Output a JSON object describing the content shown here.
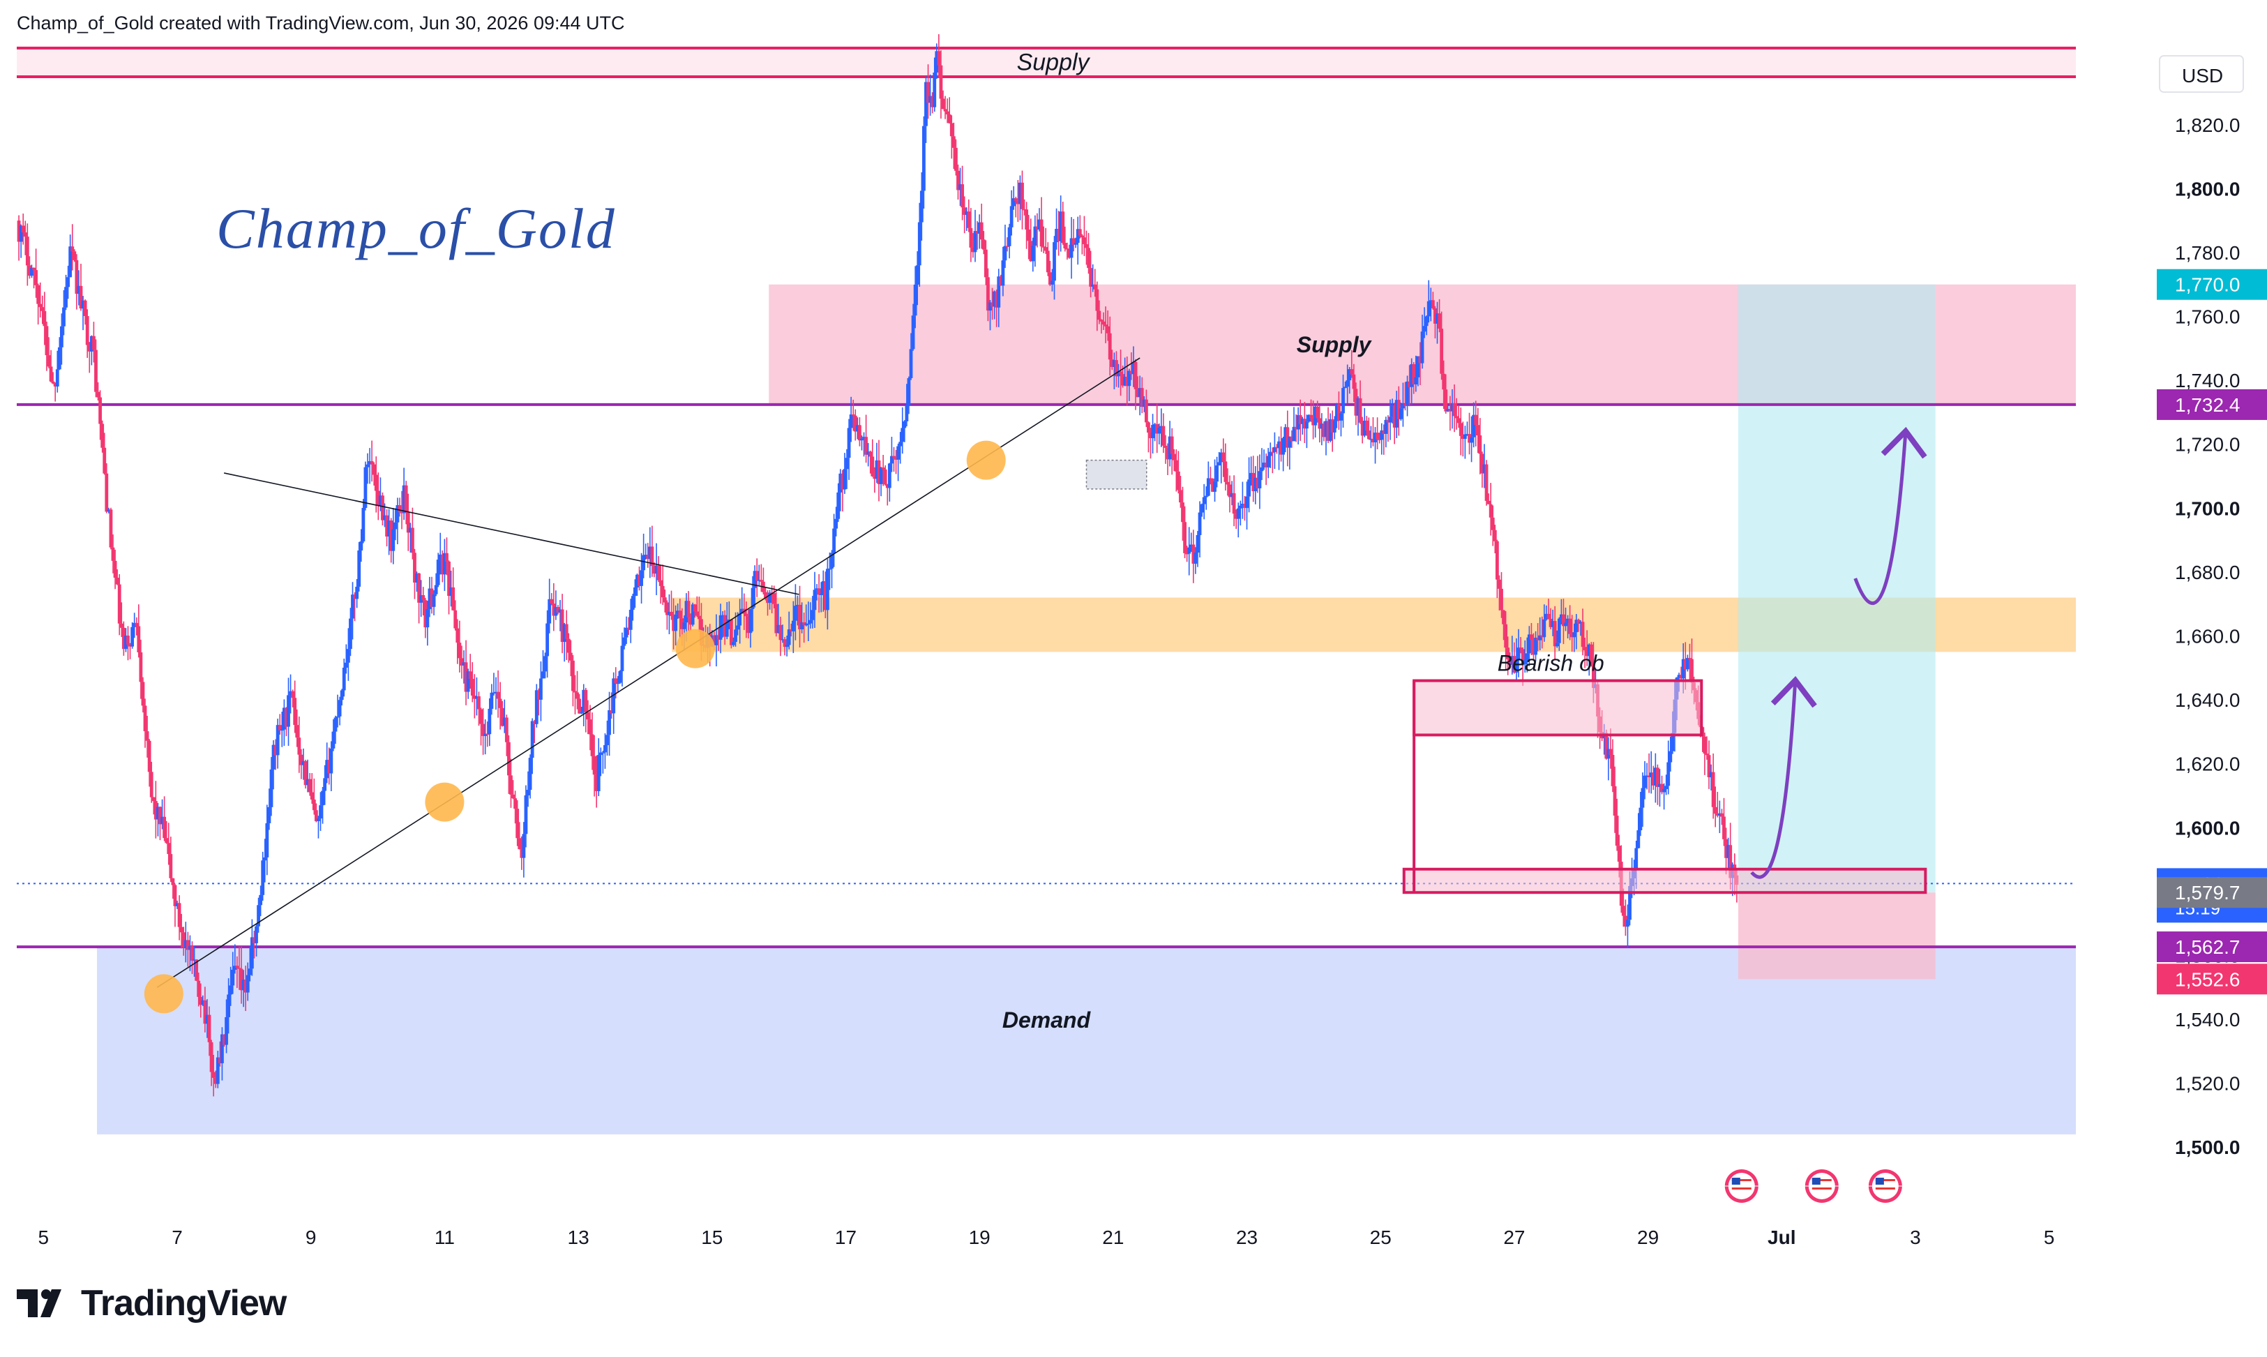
{
  "header": {
    "attribution": "Champ_of_Gold created with TradingView.com, Jun 30, 2026 09:44 UTC"
  },
  "footer": {
    "brand": "TradingView"
  },
  "watermark": "Champ_of_Gold",
  "currency_label": "USD",
  "colors": {
    "candle_up": "#2962ff",
    "candle_down": "#f23670",
    "supply_zone": "#f8bbd0",
    "demand_zone": "#c7d3fb",
    "orange_zone": "#ffcc80",
    "level_line": "#9c27b0",
    "target_fill": "#b2ebf2",
    "stop_fill": "#f8bbd0"
  },
  "chart_data": {
    "type": "candlestick",
    "instrument_currency": "USD",
    "y_range": [
      1490,
      1842
    ],
    "y_ticks": [
      1500,
      1520,
      1540,
      1560,
      1580,
      1600,
      1620,
      1640,
      1660,
      1680,
      1700,
      1720,
      1740,
      1760,
      1780,
      1800,
      1820
    ],
    "y_tick_labels": [
      "1,500.0",
      "1,520.0",
      "1,540.0",
      "1,560.0",
      "1,580.0",
      "1,600.0",
      "1,620.0",
      "1,640.0",
      "1,660.0",
      "1,680.0",
      "1,700.0",
      "1,720.0",
      "1,740.0",
      "1,760.0",
      "1,780.0",
      "1,800.0",
      "1,820.0"
    ],
    "y_ticks_bold": [
      1500,
      1600,
      1700,
      1800
    ],
    "x_range_days": [
      4.6,
      35.4
    ],
    "x_ticks": [
      {
        "day": 5,
        "label": "5"
      },
      {
        "day": 7,
        "label": "7"
      },
      {
        "day": 9,
        "label": "9"
      },
      {
        "day": 11,
        "label": "11"
      },
      {
        "day": 13,
        "label": "13"
      },
      {
        "day": 15,
        "label": "15"
      },
      {
        "day": 17,
        "label": "17"
      },
      {
        "day": 19,
        "label": "19"
      },
      {
        "day": 21,
        "label": "21"
      },
      {
        "day": 23,
        "label": "23"
      },
      {
        "day": 25,
        "label": "25"
      },
      {
        "day": 27,
        "label": "27"
      },
      {
        "day": 29,
        "label": "29"
      },
      {
        "day": 31,
        "label": "Jul"
      },
      {
        "day": 33,
        "label": "3"
      },
      {
        "day": 35,
        "label": "5"
      }
    ],
    "price_labels": [
      {
        "value": 1770.0,
        "text": "1,770.0",
        "color": "#00bcd4"
      },
      {
        "value": 1732.4,
        "text": "1,732.4",
        "color": "#9c27b0"
      },
      {
        "value": 1582.5,
        "text": "1,582.5",
        "sub": "15:19",
        "color": "#2962ff"
      },
      {
        "value": 1579.7,
        "text": "1,579.7",
        "color": "#787b86"
      },
      {
        "value": 1562.7,
        "text": "1,562.7",
        "color": "#9c27b0"
      },
      {
        "value": 1552.6,
        "text": "1,552.6",
        "color": "#f23670"
      }
    ],
    "horizontal_lines": [
      {
        "value": 1732.4,
        "color": "#9c27b0"
      },
      {
        "value": 1562.7,
        "color": "#9c27b0"
      }
    ],
    "current_price": 1582.5,
    "zones": [
      {
        "name": "top-supply",
        "label": "Supply",
        "x0": 4.6,
        "x1": 35.4,
        "y0": 1835,
        "y1": 1849,
        "fill": "#fde4ec",
        "stroke": "#e91e63",
        "label_style": "italic"
      },
      {
        "name": "supply",
        "label": "Supply",
        "x0": 15.85,
        "x1": 35.4,
        "y0": 1732.4,
        "y1": 1770,
        "fill": "#f8bbd0",
        "label_style": "bold-italic"
      },
      {
        "name": "orange",
        "label": "",
        "x0": 14.4,
        "x1": 35.4,
        "y0": 1655,
        "y1": 1672,
        "fill": "#ffcc80"
      },
      {
        "name": "demand",
        "label": "Demand",
        "x0": 5.8,
        "x1": 35.4,
        "y0": 1504,
        "y1": 1562.7,
        "fill": "#c7d3fb",
        "label_style": "bold-italic"
      }
    ],
    "order_blocks": [
      {
        "name": "bearish-ob",
        "label": "Bearish ob",
        "x0": 25.5,
        "x1": 29.8,
        "y0": 1629,
        "y1": 1646
      },
      {
        "name": "range-box",
        "label": "",
        "x0": 25.35,
        "x1": 33.15,
        "y0": 1579.7,
        "y1": 1587
      }
    ],
    "bracket_line": {
      "x": 25.5,
      "y0": 1579.7,
      "y1": 1646
    },
    "position_tool": {
      "x0": 30.35,
      "x1": 33.3,
      "entry": 1579.7,
      "target": 1770.0,
      "stop": 1552.6
    },
    "trendlines": [
      {
        "name": "upper-trendline",
        "x0": 7.7,
        "y0": 1711,
        "x1": 16.3,
        "y1": 1673
      },
      {
        "name": "rising-trendline",
        "x0": 6.7,
        "y0": 1550,
        "x1": 21.4,
        "y1": 1747
      }
    ],
    "touch_points": [
      {
        "x": 6.8,
        "y": 1548
      },
      {
        "x": 11.0,
        "y": 1608
      },
      {
        "x": 14.75,
        "y": 1656
      },
      {
        "x": 19.1,
        "y": 1715
      }
    ],
    "gray_rect": {
      "x0": 20.6,
      "x1": 21.5,
      "y0": 1706,
      "y1": 1715
    },
    "arrows": [
      {
        "name": "arrow-up-1",
        "points": [
          [
            30.55,
            1586
          ],
          [
            31.0,
            1575
          ],
          [
            31.2,
            1645
          ]
        ]
      },
      {
        "name": "arrow-up-2",
        "points": [
          [
            32.1,
            1678
          ],
          [
            32.6,
            1650
          ],
          [
            32.85,
            1723
          ]
        ]
      }
    ],
    "event_flags": [
      30.4,
      31.6,
      32.55
    ],
    "price_path": [
      [
        4.6,
        1790
      ],
      [
        4.9,
        1770
      ],
      [
        5.15,
        1737
      ],
      [
        5.4,
        1780
      ],
      [
        5.6,
        1760
      ],
      [
        5.75,
        1748
      ],
      [
        6.0,
        1690
      ],
      [
        6.2,
        1655
      ],
      [
        6.4,
        1665
      ],
      [
        6.6,
        1610
      ],
      [
        6.8,
        1598
      ],
      [
        7.0,
        1573
      ],
      [
        7.2,
        1558
      ],
      [
        7.4,
        1545
      ],
      [
        7.55,
        1520
      ],
      [
        7.7,
        1534
      ],
      [
        7.85,
        1555
      ],
      [
        8.0,
        1548
      ],
      [
        8.2,
        1570
      ],
      [
        8.45,
        1625
      ],
      [
        8.7,
        1640
      ],
      [
        8.9,
        1618
      ],
      [
        9.1,
        1598
      ],
      [
        9.3,
        1625
      ],
      [
        9.5,
        1650
      ],
      [
        9.7,
        1680
      ],
      [
        9.85,
        1718
      ],
      [
        10.0,
        1705
      ],
      [
        10.2,
        1690
      ],
      [
        10.4,
        1705
      ],
      [
        10.55,
        1680
      ],
      [
        10.7,
        1665
      ],
      [
        10.9,
        1680
      ],
      [
        11.0,
        1685
      ],
      [
        11.1,
        1672
      ],
      [
        11.25,
        1650
      ],
      [
        11.45,
        1640
      ],
      [
        11.6,
        1625
      ],
      [
        11.75,
        1645
      ],
      [
        11.9,
        1632
      ],
      [
        12.0,
        1610
      ],
      [
        12.15,
        1590
      ],
      [
        12.3,
        1628
      ],
      [
        12.45,
        1650
      ],
      [
        12.6,
        1672
      ],
      [
        12.8,
        1660
      ],
      [
        12.95,
        1640
      ],
      [
        13.1,
        1640
      ],
      [
        13.25,
        1612
      ],
      [
        13.35,
        1624
      ],
      [
        13.5,
        1640
      ],
      [
        13.7,
        1660
      ],
      [
        13.85,
        1672
      ],
      [
        14.0,
        1688
      ],
      [
        14.15,
        1680
      ],
      [
        14.3,
        1670
      ],
      [
        14.45,
        1664
      ],
      [
        14.65,
        1668
      ],
      [
        14.85,
        1660
      ],
      [
        15.0,
        1658
      ],
      [
        15.15,
        1665
      ],
      [
        15.3,
        1660
      ],
      [
        15.45,
        1670
      ],
      [
        15.55,
        1660
      ],
      [
        15.65,
        1682
      ],
      [
        15.8,
        1675
      ],
      [
        15.9,
        1670
      ],
      [
        16.05,
        1658
      ],
      [
        16.25,
        1668
      ],
      [
        16.4,
        1663
      ],
      [
        16.55,
        1675
      ],
      [
        16.7,
        1672
      ],
      [
        16.8,
        1690
      ],
      [
        16.9,
        1705
      ],
      [
        17.0,
        1715
      ],
      [
        17.1,
        1728
      ],
      [
        17.2,
        1725
      ],
      [
        17.3,
        1718
      ],
      [
        17.45,
        1712
      ],
      [
        17.6,
        1708
      ],
      [
        17.75,
        1715
      ],
      [
        17.9,
        1730
      ],
      [
        18.0,
        1760
      ],
      [
        18.1,
        1785
      ],
      [
        18.2,
        1830
      ],
      [
        18.3,
        1825
      ],
      [
        18.35,
        1840
      ],
      [
        18.45,
        1830
      ],
      [
        18.6,
        1810
      ],
      [
        18.75,
        1795
      ],
      [
        18.9,
        1780
      ],
      [
        19.0,
        1790
      ],
      [
        19.15,
        1760
      ],
      [
        19.3,
        1770
      ],
      [
        19.45,
        1790
      ],
      [
        19.6,
        1800
      ],
      [
        19.75,
        1780
      ],
      [
        19.9,
        1790
      ],
      [
        20.05,
        1770
      ],
      [
        20.2,
        1790
      ],
      [
        20.35,
        1780
      ],
      [
        20.5,
        1785
      ],
      [
        20.65,
        1775
      ],
      [
        20.8,
        1760
      ],
      [
        20.95,
        1748
      ],
      [
        21.1,
        1738
      ],
      [
        21.3,
        1742
      ],
      [
        21.5,
        1728
      ],
      [
        21.7,
        1722
      ],
      [
        21.9,
        1718
      ],
      [
        22.05,
        1690
      ],
      [
        22.2,
        1685
      ],
      [
        22.35,
        1700
      ],
      [
        22.5,
        1710
      ],
      [
        22.65,
        1715
      ],
      [
        22.8,
        1698
      ],
      [
        22.95,
        1704
      ],
      [
        23.1,
        1708
      ],
      [
        23.25,
        1712
      ],
      [
        23.4,
        1716
      ],
      [
        23.6,
        1722
      ],
      [
        23.8,
        1730
      ],
      [
        24.0,
        1728
      ],
      [
        24.2,
        1725
      ],
      [
        24.4,
        1732
      ],
      [
        24.55,
        1740
      ],
      [
        24.7,
        1728
      ],
      [
        24.85,
        1720
      ],
      [
        25.0,
        1723
      ],
      [
        25.15,
        1728
      ],
      [
        25.3,
        1732
      ],
      [
        25.45,
        1740
      ],
      [
        25.6,
        1750
      ],
      [
        25.75,
        1765
      ],
      [
        25.85,
        1760
      ],
      [
        25.95,
        1735
      ],
      [
        26.1,
        1728
      ],
      [
        26.25,
        1720
      ],
      [
        26.4,
        1725
      ],
      [
        26.55,
        1710
      ],
      [
        26.7,
        1690
      ],
      [
        26.85,
        1660
      ],
      [
        27.0,
        1650
      ],
      [
        27.15,
        1655
      ],
      [
        27.3,
        1658
      ],
      [
        27.45,
        1665
      ],
      [
        27.6,
        1660
      ],
      [
        27.75,
        1668
      ],
      [
        27.9,
        1662
      ],
      [
        28.05,
        1660
      ],
      [
        28.15,
        1650
      ],
      [
        28.3,
        1630
      ],
      [
        28.45,
        1620
      ],
      [
        28.55,
        1590
      ],
      [
        28.65,
        1570
      ],
      [
        28.8,
        1585
      ],
      [
        28.95,
        1620
      ],
      [
        29.1,
        1615
      ],
      [
        29.25,
        1610
      ],
      [
        29.4,
        1640
      ],
      [
        29.55,
        1652
      ],
      [
        29.7,
        1645
      ],
      [
        29.85,
        1625
      ],
      [
        30.0,
        1608
      ],
      [
        30.15,
        1595
      ],
      [
        30.3,
        1582
      ],
      [
        30.45,
        1570
      ],
      [
        30.55,
        1545
      ],
      [
        30.7,
        1530
      ],
      [
        30.85,
        1555
      ],
      [
        31.0,
        1575
      ],
      [
        31.15,
        1560
      ],
      [
        31.3,
        1545
      ],
      [
        31.45,
        1535
      ],
      [
        31.6,
        1560
      ],
      [
        31.75,
        1580
      ],
      [
        31.9,
        1575
      ],
      [
        32.05,
        1580
      ],
      [
        32.2,
        1578
      ],
      [
        32.35,
        1582
      ],
      [
        32.5,
        1588
      ],
      [
        32.65,
        1600
      ],
      [
        32.8,
        1588
      ],
      [
        32.95,
        1580
      ],
      [
        33.1,
        1572
      ],
      [
        33.25,
        1570
      ],
      [
        33.4,
        1575
      ],
      [
        33.55,
        1568
      ],
      [
        33.7,
        1572
      ],
      [
        33.85,
        1580
      ],
      [
        34.0,
        1575
      ],
      [
        34.15,
        1570
      ],
      [
        34.3,
        1560
      ],
      [
        34.45,
        1560
      ],
      [
        34.6,
        1570
      ],
      [
        34.75,
        1575
      ],
      [
        34.9,
        1568
      ],
      [
        35.05,
        1575
      ],
      [
        35.15,
        1580
      ],
      [
        35.25,
        1585
      ],
      [
        35.35,
        1600
      ],
      [
        35.4,
        1590
      ]
    ]
  }
}
